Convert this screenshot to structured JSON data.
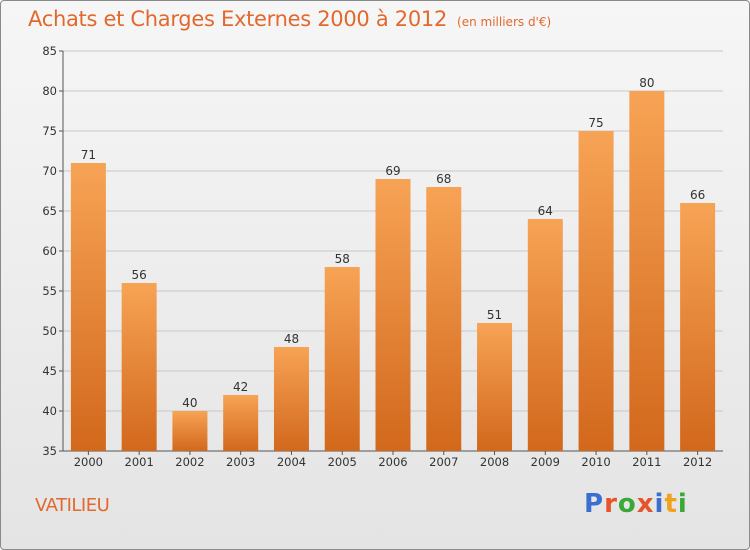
{
  "header": {
    "title": "Achats et Charges Externes 2000 à 2012",
    "unit": "(en milliers d'€)"
  },
  "footer": {
    "commune": "VATILIEU",
    "logo_text": "Proxiti",
    "logo_colors": [
      "#3a6fd0",
      "#e8542a",
      "#3aa935",
      "#e8542a",
      "#3a6fd0",
      "#f0a21c",
      "#3aa935"
    ]
  },
  "colors": {
    "accent": "#e2692d",
    "bar_top": "#f7a355",
    "bar_bottom": "#d2681c",
    "grid": "#c8c8c8"
  },
  "chart_data": {
    "type": "bar",
    "title": "Achats et Charges Externes 2000 à 2012",
    "subtitle": "(en milliers d'€)",
    "categories": [
      "2000",
      "2001",
      "2002",
      "2003",
      "2004",
      "2005",
      "2006",
      "2007",
      "2008",
      "2009",
      "2010",
      "2011",
      "2012"
    ],
    "values": [
      71,
      56,
      40,
      42,
      48,
      58,
      69,
      68,
      51,
      64,
      75,
      80,
      66
    ],
    "ylim": [
      35,
      85
    ],
    "yticks": [
      35,
      40,
      45,
      50,
      55,
      60,
      65,
      70,
      75,
      80,
      85
    ],
    "grid": true,
    "data_labels": true
  }
}
